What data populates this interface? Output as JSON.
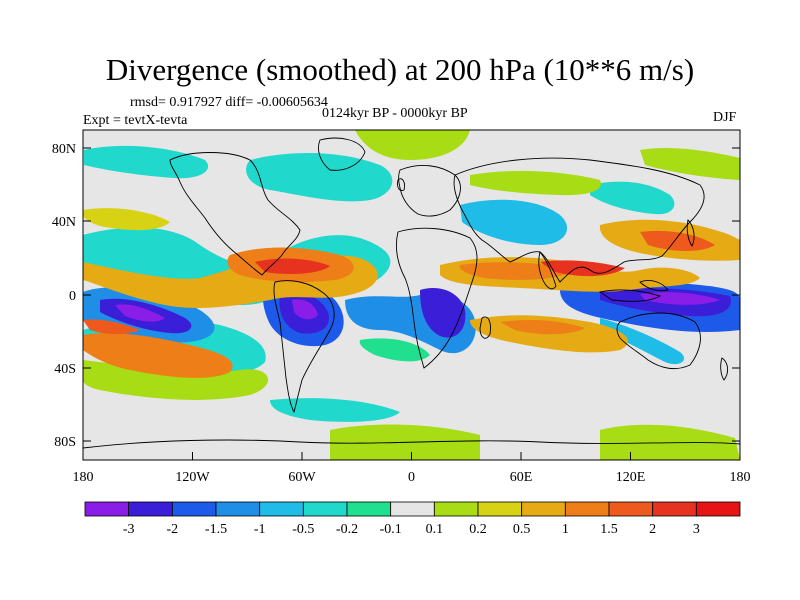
{
  "header": {
    "title": "Divergence (smoothed) at 200 hPa (10**6 m/s)",
    "stats": "rmsd= 0.917927 diff= -0.00605634",
    "experiment": "Expt = tevtX-tevta",
    "period": "0124kyr BP - 0000kyr BP",
    "season": "DJF"
  },
  "axes": {
    "y_ticks": [
      "80N",
      "40N",
      "0",
      "40S",
      "80S"
    ],
    "x_ticks": [
      "180",
      "120W",
      "60W",
      "0",
      "60E",
      "120E",
      "180"
    ]
  },
  "colorbar": {
    "labels": [
      "-3",
      "-2",
      "-1.5",
      "-1",
      "-0.5",
      "-0.2",
      "-0.1",
      "0.1",
      "0.2",
      "0.5",
      "1",
      "1.5",
      "2",
      "3"
    ],
    "colors": [
      "#8a1ee8",
      "#3a1ed8",
      "#1e5aea",
      "#1e8ee6",
      "#1ebce6",
      "#20d8cc",
      "#20e090",
      "#e6e6e6",
      "#a8dc14",
      "#d8d214",
      "#e6aa14",
      "#ee7e18",
      "#ee5a1e",
      "#e6321e",
      "#e61414"
    ]
  },
  "colors": {
    "land_outline": "#000000",
    "background_field": "#e6e6e6"
  }
}
